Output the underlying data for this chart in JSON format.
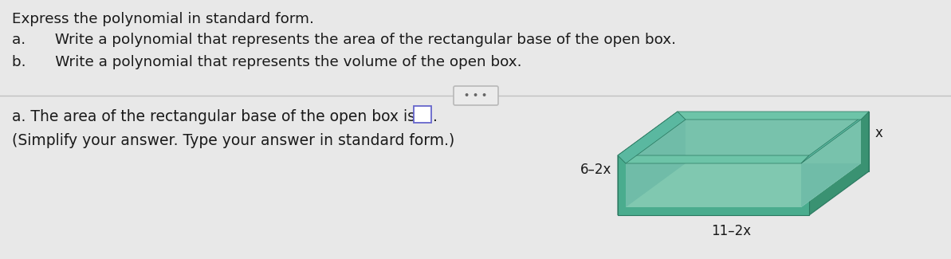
{
  "title": "Express the polynomial in standard form.",
  "line_a": "a.  Write a polynomial that represents the area of the rectangular base of the open box.",
  "line_b": "b.  Write a polynomial that represents the volume of the open box.",
  "dots_text": "• • •",
  "bottom_line1": "a. The area of the rectangular base of the open box is",
  "bottom_line2": "(Simplify your answer. Type your answer in standard form.)",
  "label_side": "x",
  "label_front": "6–2x",
  "label_bottom": "11–2x",
  "bg_color": "#e8e8e8",
  "box_front": "#4aac8e",
  "box_right": "#3d9e80",
  "box_left": "#3d9e80",
  "box_back_top": "#3a9878",
  "box_top_face": "#6dc4a8",
  "box_inside": "#c8eee5",
  "box_edge": "#2a7860",
  "divider_color": "#c0c0c0",
  "btn_face": "#ebebeb",
  "btn_edge": "#b8b8b8",
  "text_color": "#1a1a1a",
  "ans_box_edge": "#6666cc"
}
